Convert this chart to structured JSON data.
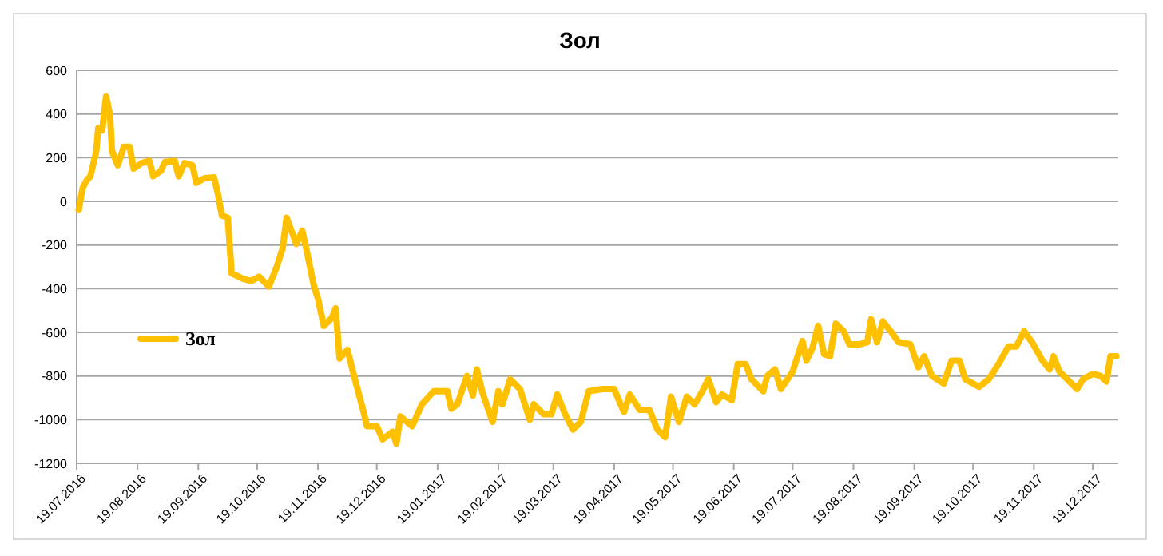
{
  "chart_data": {
    "type": "line",
    "title": "Зол",
    "legend": "left",
    "grid": "y",
    "line_style": "solid",
    "marker": "none",
    "xlim": [
      "2016-07-19",
      "2018-01-01"
    ],
    "xticks": [
      {
        "value": "2016-07-19",
        "label": "19.07.2016"
      },
      {
        "value": "2016-08-19",
        "label": "19.08.2016"
      },
      {
        "value": "2016-09-19",
        "label": "19.09.2016"
      },
      {
        "value": "2016-10-19",
        "label": "19.10.2016"
      },
      {
        "value": "2016-11-19",
        "label": "19.11.2016"
      },
      {
        "value": "2016-12-19",
        "label": "19.12.2016"
      },
      {
        "value": "2017-01-19",
        "label": "19.01.2017"
      },
      {
        "value": "2017-02-19",
        "label": "19.02.2017"
      },
      {
        "value": "2017-03-19",
        "label": "19.03.2017"
      },
      {
        "value": "2017-04-19",
        "label": "19.04.2017"
      },
      {
        "value": "2017-05-19",
        "label": "19.05.2017"
      },
      {
        "value": "2017-06-19",
        "label": "19.06.2017"
      },
      {
        "value": "2017-07-19",
        "label": "19.07.2017"
      },
      {
        "value": "2017-08-19",
        "label": "19.08.2017"
      },
      {
        "value": "2017-09-19",
        "label": "19.09.2017"
      },
      {
        "value": "2017-10-19",
        "label": "19.10.2017"
      },
      {
        "value": "2017-11-19",
        "label": "19.11.2017"
      },
      {
        "value": "2017-12-19",
        "label": "19.12.2017"
      }
    ],
    "ylim": [
      -1200,
      600
    ],
    "yticks": [
      -1200,
      -1000,
      -800,
      -600,
      -400,
      -200,
      0,
      200,
      400,
      600
    ],
    "x": [
      "2016-07-20",
      "2016-07-22",
      "2016-07-24",
      "2016-07-26",
      "2016-07-29",
      "2016-07-30",
      "2016-08-01",
      "2016-08-03",
      "2016-08-05",
      "2016-08-06",
      "2016-08-09",
      "2016-08-12",
      "2016-08-15",
      "2016-08-17",
      "2016-08-21",
      "2016-08-25",
      "2016-08-27",
      "2016-08-31",
      "2016-09-02",
      "2016-09-07",
      "2016-09-09",
      "2016-09-12",
      "2016-09-16",
      "2016-09-18",
      "2016-09-22",
      "2016-09-27",
      "2016-09-29",
      "2016-10-01",
      "2016-10-04",
      "2016-10-06",
      "2016-10-12",
      "2016-10-16",
      "2016-10-20",
      "2016-10-25",
      "2016-10-29",
      "2016-11-01",
      "2016-11-03",
      "2016-11-05",
      "2016-11-08",
      "2016-11-11",
      "2016-11-13",
      "2016-11-17",
      "2016-11-19",
      "2016-11-22",
      "2016-11-26",
      "2016-11-28",
      "2016-11-30",
      "2016-12-04",
      "2016-12-06",
      "2016-12-08",
      "2016-12-12",
      "2016-12-14",
      "2016-12-19",
      "2016-12-22",
      "2016-12-27",
      "2016-12-29",
      "2016-12-31",
      "2017-01-06",
      "2017-01-11",
      "2017-01-17",
      "2017-01-21",
      "2017-01-24",
      "2017-01-26",
      "2017-01-29",
      "2017-02-03",
      "2017-02-06",
      "2017-02-08",
      "2017-02-11",
      "2017-02-16",
      "2017-02-19",
      "2017-02-21",
      "2017-02-25",
      "2017-03-02",
      "2017-03-07",
      "2017-03-09",
      "2017-03-14",
      "2017-03-18",
      "2017-03-21",
      "2017-03-25",
      "2017-03-29",
      "2017-04-02",
      "2017-04-06",
      "2017-04-13",
      "2017-04-19",
      "2017-04-24",
      "2017-04-27",
      "2017-05-02",
      "2017-05-07",
      "2017-05-11",
      "2017-05-15",
      "2017-05-18",
      "2017-05-22",
      "2017-05-26",
      "2017-05-30",
      "2017-06-03",
      "2017-06-06",
      "2017-06-10",
      "2017-06-13",
      "2017-06-18",
      "2017-06-21",
      "2017-06-25",
      "2017-06-28",
      "2017-07-04",
      "2017-07-06",
      "2017-07-10",
      "2017-07-13",
      "2017-07-19",
      "2017-07-24",
      "2017-07-26",
      "2017-07-29",
      "2017-08-01",
      "2017-08-04",
      "2017-08-07",
      "2017-08-10",
      "2017-08-14",
      "2017-08-17",
      "2017-08-22",
      "2017-08-26",
      "2017-08-28",
      "2017-08-31",
      "2017-09-03",
      "2017-09-07",
      "2017-09-11",
      "2017-09-17",
      "2017-09-21",
      "2017-09-24",
      "2017-09-28",
      "2017-10-04",
      "2017-10-08",
      "2017-10-12",
      "2017-10-15",
      "2017-10-22",
      "2017-10-27",
      "2017-11-01",
      "2017-11-06",
      "2017-11-10",
      "2017-11-14",
      "2017-11-18",
      "2017-11-23",
      "2017-11-27",
      "2017-11-29",
      "2017-12-02",
      "2017-12-06",
      "2017-12-11",
      "2017-12-14",
      "2017-12-19",
      "2017-12-23",
      "2017-12-26",
      "2017-12-28",
      "2017-12-31"
    ],
    "series": [
      {
        "name": "Зол",
        "color": "#ffc000",
        "values": [
          -40,
          60,
          95,
          115,
          230,
          335,
          325,
          480,
          395,
          230,
          165,
          250,
          250,
          150,
          175,
          185,
          115,
          140,
          180,
          185,
          115,
          175,
          165,
          85,
          105,
          110,
          35,
          -65,
          -75,
          -330,
          -355,
          -365,
          -345,
          -390,
          -300,
          -215,
          -75,
          -125,
          -195,
          -135,
          -215,
          -390,
          -445,
          -570,
          -535,
          -490,
          -720,
          -680,
          -750,
          -820,
          -955,
          -1030,
          -1030,
          -1090,
          -1055,
          -1110,
          -985,
          -1030,
          -930,
          -870,
          -870,
          -870,
          -950,
          -930,
          -800,
          -890,
          -770,
          -880,
          -1010,
          -870,
          -930,
          -815,
          -860,
          -1000,
          -930,
          -975,
          -975,
          -885,
          -975,
          -1045,
          -1010,
          -870,
          -860,
          -860,
          -965,
          -885,
          -955,
          -955,
          -1045,
          -1080,
          -895,
          -1010,
          -895,
          -930,
          -870,
          -815,
          -920,
          -885,
          -910,
          -745,
          -745,
          -815,
          -870,
          -800,
          -770,
          -860,
          -780,
          -640,
          -730,
          -675,
          -570,
          -700,
          -710,
          -560,
          -595,
          -655,
          -655,
          -645,
          -540,
          -645,
          -550,
          -595,
          -645,
          -655,
          -760,
          -710,
          -800,
          -835,
          -730,
          -730,
          -815,
          -850,
          -815,
          -745,
          -665,
          -665,
          -595,
          -645,
          -725,
          -770,
          -710,
          -780,
          -815,
          -860,
          -815,
          -790,
          -800,
          -825,
          -710,
          -710
        ]
      }
    ]
  }
}
